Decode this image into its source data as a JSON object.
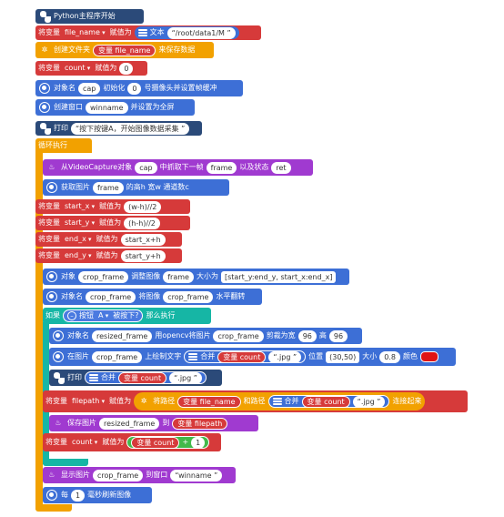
{
  "b1": {
    "label": "Python主程序开始"
  },
  "b2": {
    "prefix": "将变量",
    "var": "file_name",
    "assign": "赋值为",
    "text_label": "文本",
    "value": "/root/data1/M"
  },
  "b3": {
    "label1": "创建文件夹",
    "var": "变量 file_name",
    "label2": "来保存数据"
  },
  "b4": {
    "prefix": "将变量",
    "var": "count",
    "assign": "赋值为",
    "value": "0"
  },
  "b5": {
    "label1": "对象名",
    "obj": "cap",
    "label2": "初始化",
    "num": "0",
    "label3": "号摄像头并设置帧缓冲"
  },
  "b6": {
    "label1": "创建窗口",
    "win": "winname",
    "label2": "并设置为全屏"
  },
  "b7": {
    "label": "打印",
    "text": "按下按键A，开始图像数据采集"
  },
  "loop": {
    "label": "循环执行"
  },
  "l1": {
    "label1": "从VideoCapture对象",
    "obj": "cap",
    "label2": "中抓取下一帧",
    "frame": "frame",
    "label3": "以及状态",
    "ret": "ret"
  },
  "l2": {
    "label1": "获取图片",
    "img": "frame",
    "label2": "的高h 宽w 通道数c"
  },
  "l3": {
    "prefix": "将变量",
    "var": "start_x",
    "assign": "赋值为",
    "value": "(w-h)//2"
  },
  "l4": {
    "prefix": "将变量",
    "var": "start_y",
    "assign": "赋值为",
    "value": "(h-h)//2"
  },
  "l5": {
    "prefix": "将变量",
    "var": "end_x",
    "assign": "赋值为",
    "value": "start_x+h"
  },
  "l6": {
    "prefix": "将变量",
    "var": "end_y",
    "assign": "赋值为",
    "value": "start_y+h"
  },
  "l7": {
    "label1": "对象",
    "obj": "crop_frame",
    "label2": "调整图像",
    "img": "frame",
    "label3": "大小为",
    "size": "[start_y:end_y, start_x:end_x]"
  },
  "l8": {
    "label1": "对象名",
    "obj": "crop_frame",
    "label2": "将图像",
    "img": "crop_frame",
    "label3": "水平翻转"
  },
  "iff": {
    "label1": "如果",
    "btn": "按钮",
    "key": "A",
    "pressed": "被按下?",
    "label2": "那么执行"
  },
  "i1": {
    "label1": "对象名",
    "obj": "resized_frame",
    "label2": "用opencv将图片",
    "img": "crop_frame",
    "label3": "剪裁为宽",
    "w": "96",
    "label4": "高",
    "h": "96"
  },
  "i2": {
    "label1": "在图片",
    "img": "crop_frame",
    "label2": "上绘制文字",
    "merge": "合并",
    "var": "变量 count",
    "ext": ".jpg",
    "label3": "位置",
    "pos": "(30,50)",
    "label4": "大小",
    "size": "0.8",
    "label5": "颜色",
    "color": "#e01414"
  },
  "i3": {
    "label": "打印",
    "merge": "合并",
    "var": "变量 count",
    "ext": ".jpg"
  },
  "i4": {
    "prefix": "将变量",
    "var": "filepath",
    "assign": "赋值为",
    "label1": "将路径",
    "path": "变量 file_name",
    "label2": "和路径",
    "merge": "合并",
    "cvar": "变量 count",
    "ext": ".jpg",
    "label3": "连接起来"
  },
  "i5": {
    "label1": "保存图片",
    "img": "resized_frame",
    "label2": "到",
    "var": "变量 filepath"
  },
  "i6": {
    "prefix": "将变量",
    "var": "count",
    "assign": "赋值为",
    "cvar": "变量 count",
    "op": "+",
    "num": "1"
  },
  "l9": {
    "label1": "显示图片",
    "img": "crop_frame",
    "label2": "到窗口",
    "win": "winname"
  },
  "l10": {
    "label1": "每",
    "num": "1",
    "label2": "毫秒刷新图像"
  }
}
